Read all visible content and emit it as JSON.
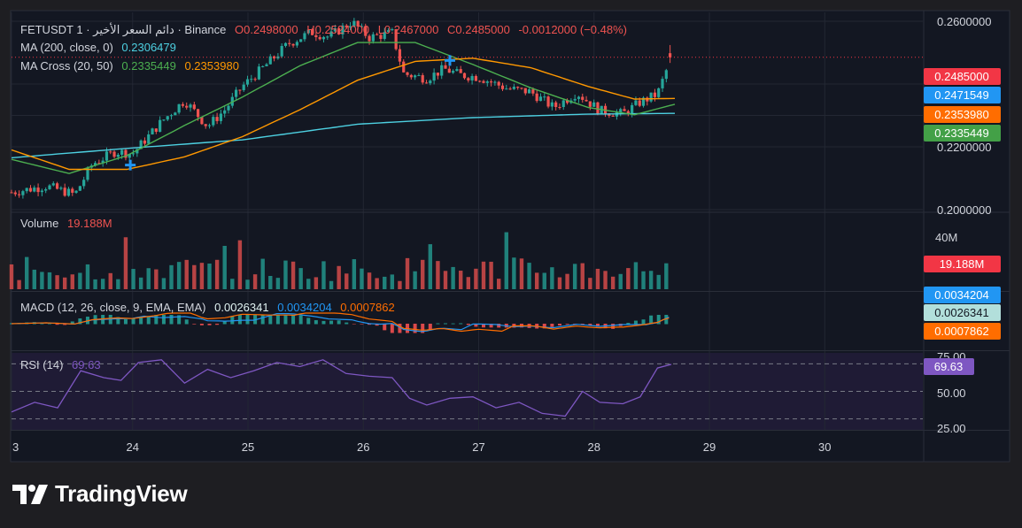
{
  "header": {
    "symbol": "FETUSDT",
    "interval": "1",
    "description": "دائم السعر الأخير",
    "exchange": "Binance",
    "open": "O0.2498000",
    "high": "H0.2524000",
    "low": "L0.2467000",
    "close": "C0.2485000",
    "change": "-0.0012000 (−0.48%)"
  },
  "legend": {
    "ma200_label": "MA (200, close, 0)",
    "ma200_value": "0.2306479",
    "cross_label": "MA Cross (20, 50)",
    "cross_fast": "0.2335449",
    "cross_slow": "0.2353980",
    "volume_label": "Volume",
    "volume_value": "19.188M",
    "macd_label": "MACD (12, 26, close, 9, EMA, EMA)",
    "macd_hist": "0.0026341",
    "macd_line": "0.0034204",
    "macd_signal": "0.0007862",
    "rsi_label": "RSI (14)",
    "rsi_value": "69.63"
  },
  "price_badges": [
    {
      "value": "0.2485000",
      "color": "#f23645"
    },
    {
      "value": "0.2471549",
      "color": "#2196f3"
    },
    {
      "value": "0.2353980",
      "color": "#ff6d00"
    },
    {
      "value": "0.2335449",
      "color": "#43a047"
    }
  ],
  "volume_badge": {
    "value": "19.188M",
    "color": "#f23645"
  },
  "macd_badges": [
    {
      "value": "0.0034204",
      "color": "#2196f3"
    },
    {
      "value": "0.0026341",
      "color": "#b2dfdb"
    },
    {
      "value": "0.0007862",
      "color": "#ff6d00"
    }
  ],
  "rsi_badge": {
    "value": "69.63",
    "color": "#7e57c2"
  },
  "colors": {
    "up": "#26a69a",
    "down": "#ef5350",
    "ma200": "#4dd0e1",
    "ma_fast": "#4caf50",
    "ma_slow": "#ff9800",
    "macd_line": "#2196f3",
    "macd_signal": "#ff6d00",
    "rsi": "#7e57c2",
    "cross_marker": "#2196f3"
  },
  "brand": {
    "name": "TradingView"
  },
  "chart_data": {
    "type": "candlestick",
    "x_axis": {
      "ticks": [
        "3",
        "24",
        "25",
        "26",
        "27",
        "28",
        "29",
        "30"
      ],
      "range": [
        23,
        30.9
      ]
    },
    "price_axis": {
      "ticks": [
        "0.2600000",
        "0.2200000",
        "0.2000000"
      ],
      "range": [
        0.2,
        0.2628
      ]
    },
    "price_series": {
      "description": "approximate closing price path",
      "x": [
        23,
        23.3,
        23.55,
        23.7,
        23.9,
        24.05,
        24.3,
        24.5,
        24.7,
        24.85,
        25.0,
        25.2,
        25.4,
        25.6,
        25.75,
        25.95,
        26.1,
        26.3,
        26.4,
        26.6,
        26.75,
        26.9,
        27.05,
        27.3,
        27.5,
        27.7,
        27.9,
        28.1,
        28.3,
        28.45,
        28.6,
        28.72
      ],
      "close": [
        0.2055,
        0.2075,
        0.2048,
        0.2145,
        0.2185,
        0.2178,
        0.228,
        0.2348,
        0.2265,
        0.2318,
        0.2392,
        0.2458,
        0.2528,
        0.2565,
        0.255,
        0.2598,
        0.2548,
        0.2562,
        0.2432,
        0.2418,
        0.2448,
        0.2428,
        0.2422,
        0.2385,
        0.2375,
        0.2325,
        0.2372,
        0.2315,
        0.2305,
        0.2342,
        0.2368,
        0.2485
      ]
    },
    "moving_averages": [
      {
        "name": "MA (200, close, 0)",
        "x": [
          23,
          24,
          25,
          26,
          27,
          28,
          28.75
        ],
        "y": [
          0.2165,
          0.2195,
          0.2222,
          0.2272,
          0.2293,
          0.2304,
          0.2306479
        ]
      },
      {
        "name": "MA Cross (20, 50) fast",
        "x": [
          23,
          23.5,
          24,
          24.5,
          25,
          25.5,
          26,
          26.5,
          27,
          27.5,
          28,
          28.4,
          28.75
        ],
        "y": [
          0.216,
          0.2115,
          0.2172,
          0.2268,
          0.2358,
          0.2458,
          0.2532,
          0.2532,
          0.2462,
          0.2388,
          0.2325,
          0.2302,
          0.2335449
        ]
      },
      {
        "name": "MA Cross (20, 50) slow",
        "x": [
          23,
          23.5,
          24,
          24.5,
          25,
          25.5,
          26,
          26.5,
          27,
          27.5,
          28,
          28.4,
          28.75
        ],
        "y": [
          0.219,
          0.2128,
          0.2128,
          0.2168,
          0.2232,
          0.2318,
          0.2412,
          0.2472,
          0.2482,
          0.2452,
          0.2392,
          0.2352,
          0.235398
        ]
      }
    ],
    "cross_markers": [
      {
        "x": 24.03,
        "y": 0.2142
      },
      {
        "x": 26.8,
        "y": 0.2475
      }
    ],
    "volume": {
      "axis_ticks": [
        "40M"
      ],
      "range": [
        0,
        55
      ],
      "last": "19.188M"
    },
    "macd": {
      "values": {
        "macd": 0.0034204,
        "signal": 0.0007862,
        "histogram": 0.0026341
      }
    },
    "rsi": {
      "axis_ticks": [
        "75.00",
        "50.00",
        "25.00"
      ],
      "range": [
        22,
        78
      ],
      "bands": [
        30,
        70
      ],
      "x": [
        23,
        23.2,
        23.4,
        23.6,
        23.8,
        23.95,
        24.1,
        24.3,
        24.5,
        24.7,
        24.9,
        25.1,
        25.3,
        25.5,
        25.7,
        25.9,
        26.1,
        26.3,
        26.45,
        26.6,
        26.8,
        27.0,
        27.2,
        27.4,
        27.6,
        27.8,
        27.95,
        28.1,
        28.3,
        28.45,
        28.6,
        28.72
      ],
      "y": [
        35,
        42,
        38,
        65,
        60,
        58,
        71,
        73,
        56,
        66,
        60,
        65,
        71,
        68,
        73,
        63,
        61,
        60,
        45,
        40,
        45,
        46,
        38,
        42,
        34,
        32,
        50,
        42,
        41,
        46,
        67,
        69.63
      ]
    }
  }
}
